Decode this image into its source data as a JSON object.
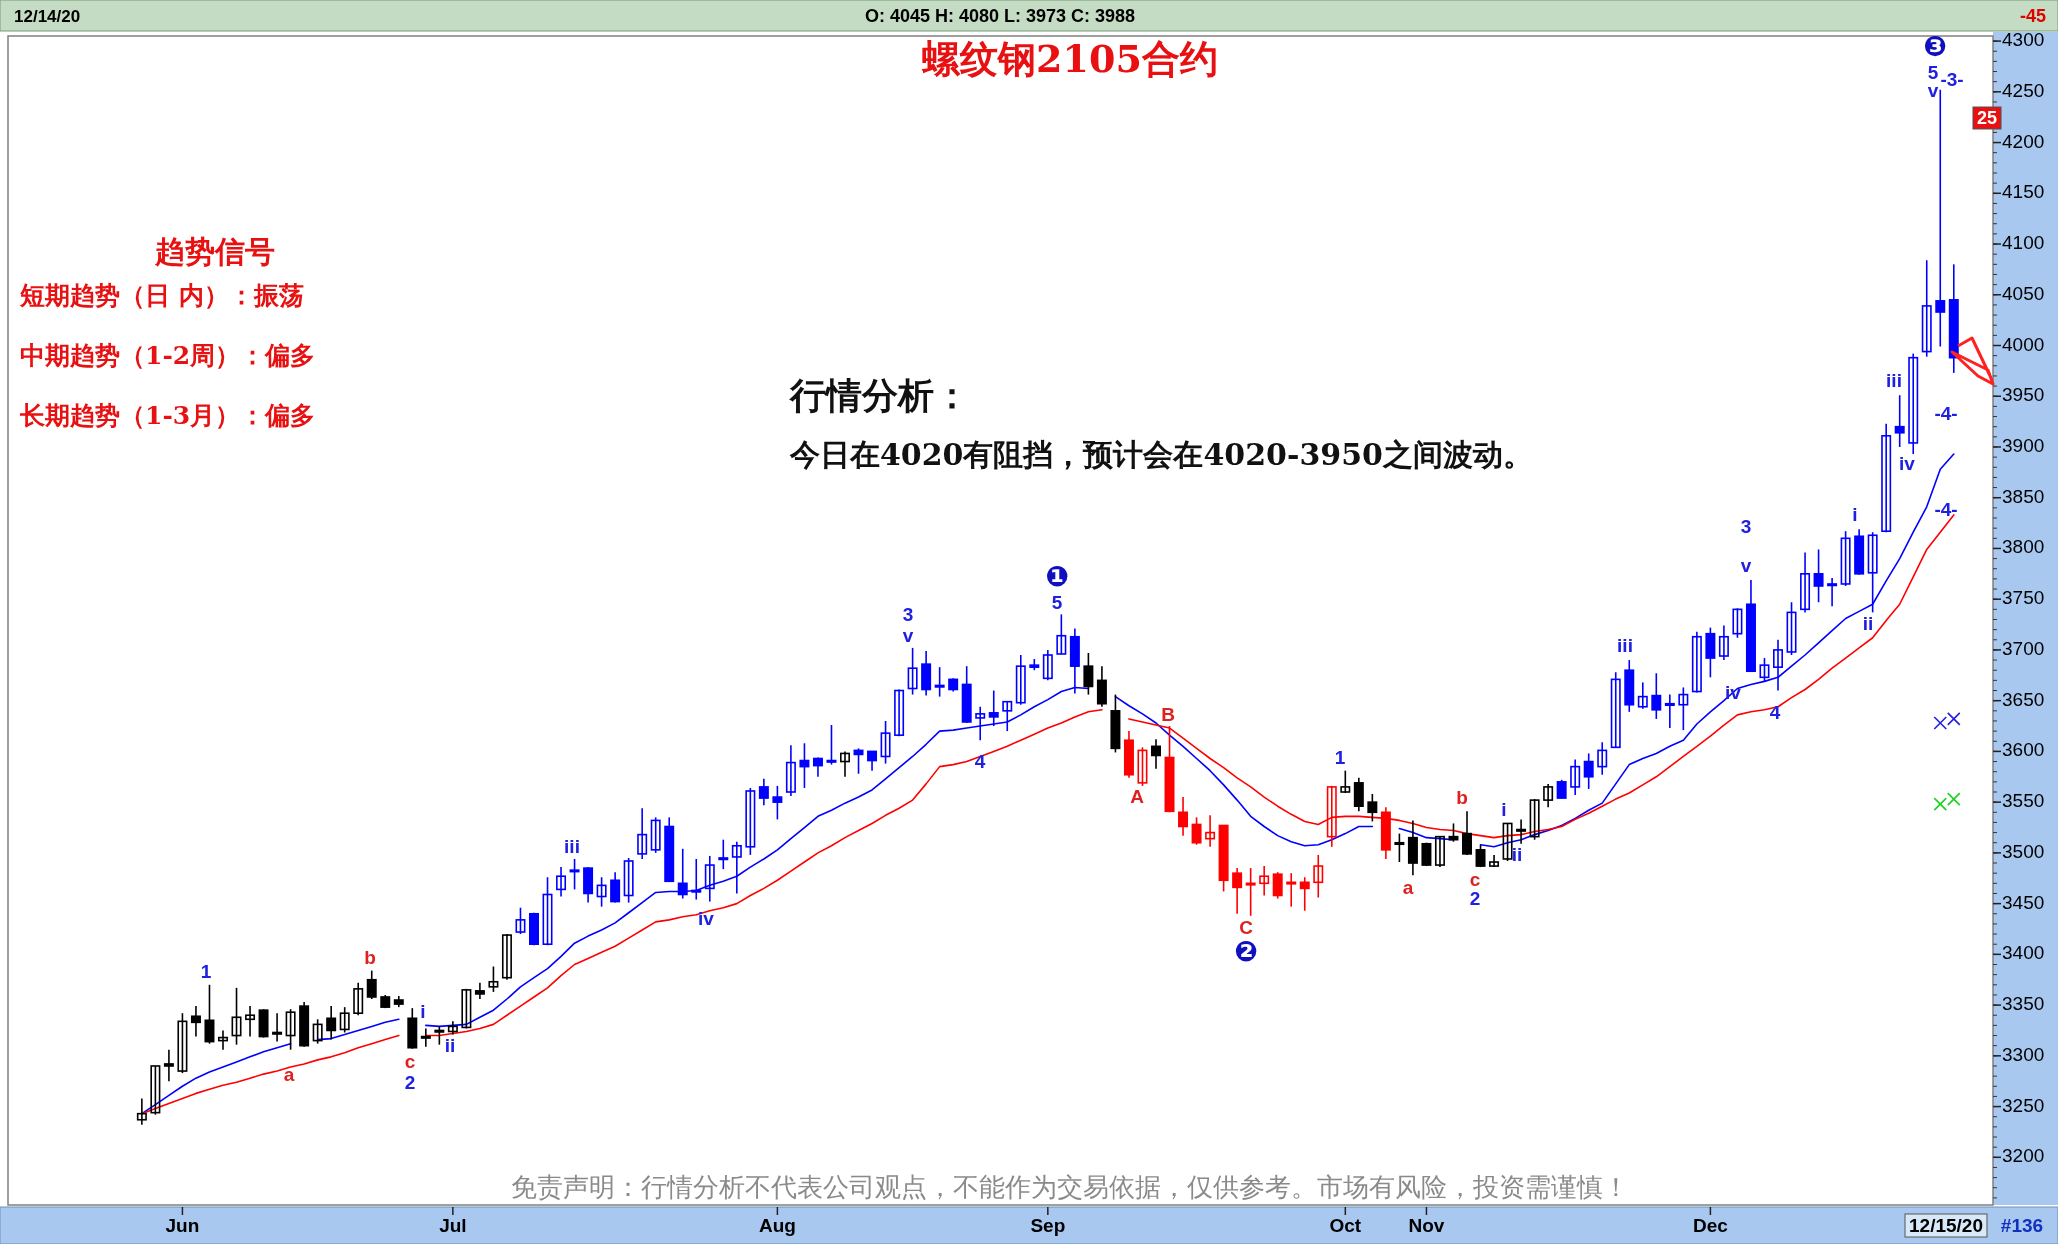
{
  "chart_data": {
    "type": "candlestick",
    "title": "螺纹钢2105合约",
    "categories": [
      null,
      null,
      null,
      "Jun",
      null,
      null,
      null,
      null,
      null,
      null,
      null,
      null,
      null,
      null,
      null,
      null,
      null,
      null,
      null,
      null,
      null,
      null,
      null,
      "Jul",
      null,
      null,
      null,
      null,
      null,
      null,
      null,
      null,
      null,
      null,
      null,
      null,
      null,
      null,
      null,
      null,
      null,
      null,
      null,
      null,
      null,
      null,
      null,
      "Aug",
      null,
      null,
      null,
      null,
      null,
      null,
      null,
      null,
      null,
      null,
      null,
      null,
      null,
      null,
      null,
      null,
      null,
      null,
      null,
      "Sep",
      null,
      null,
      null,
      null,
      null,
      null,
      null,
      null,
      null,
      null,
      null,
      null,
      null,
      null,
      null,
      null,
      null,
      null,
      null,
      null,
      null,
      "Oct",
      null,
      null,
      null,
      null,
      null,
      "Nov",
      null,
      null,
      null,
      null,
      null,
      null,
      null,
      null,
      null,
      null,
      null,
      null,
      null,
      null,
      null,
      null,
      null,
      null,
      null,
      null,
      "Dec",
      null,
      null,
      null,
      null,
      null,
      null,
      null,
      null,
      null,
      null,
      null,
      null,
      null,
      null,
      null,
      null,
      null,
      null
    ],
    "ohlc": [
      [
        3237,
        3258,
        3232,
        3243
      ],
      [
        3244,
        3290,
        3242,
        3290
      ],
      [
        3292,
        3306,
        3275,
        3290
      ],
      [
        3285,
        3342,
        3283,
        3334
      ],
      [
        3339,
        3349,
        3319,
        3333
      ],
      [
        3335,
        3370,
        3312,
        3314
      ],
      [
        3315,
        3325,
        3306,
        3318
      ],
      [
        3320,
        3367,
        3311,
        3338
      ],
      [
        3336,
        3349,
        3319,
        3340
      ],
      [
        3345,
        3346,
        3318,
        3319
      ],
      [
        3323,
        3342,
        3314,
        3322
      ],
      [
        3320,
        3346,
        3306,
        3343
      ],
      [
        3349,
        3353,
        3309,
        3310
      ],
      [
        3315,
        3336,
        3312,
        3331
      ],
      [
        3337,
        3349,
        3316,
        3325
      ],
      [
        3326,
        3348,
        3323,
        3342
      ],
      [
        3342,
        3372,
        3340,
        3366
      ],
      [
        3375,
        3384,
        3356,
        3358
      ],
      [
        3358,
        3360,
        3347,
        3348
      ],
      [
        3355,
        3359,
        3348,
        3351
      ],
      [
        3337,
        3347,
        3307,
        3308
      ],
      [
        3319,
        3327,
        3309,
        3318
      ],
      [
        3324,
        3329,
        3311,
        3325
      ],
      [
        3324,
        3334,
        3321,
        3329
      ],
      [
        3328,
        3366,
        3327,
        3365
      ],
      [
        3364,
        3372,
        3356,
        3361
      ],
      [
        3368,
        3388,
        3363,
        3373
      ],
      [
        3377,
        3420,
        3375,
        3419
      ],
      [
        3422,
        3446,
        3420,
        3434
      ],
      [
        3440,
        3441,
        3409,
        3410
      ],
      [
        3410,
        3476,
        3409,
        3459
      ],
      [
        3464,
        3486,
        3457,
        3477
      ],
      [
        3482,
        3494,
        3464,
        3483
      ],
      [
        3485,
        3486,
        3451,
        3460
      ],
      [
        3457,
        3476,
        3447,
        3468
      ],
      [
        3473,
        3481,
        3451,
        3452
      ],
      [
        3458,
        3495,
        3451,
        3492
      ],
      [
        3499,
        3544,
        3494,
        3518
      ],
      [
        3503,
        3535,
        3500,
        3532
      ],
      [
        3526,
        3535,
        3472,
        3472
      ],
      [
        3470,
        3504,
        3455,
        3459
      ],
      [
        3463,
        3494,
        3454,
        3463
      ],
      [
        3465,
        3497,
        3452,
        3488
      ],
      [
        3494,
        3513,
        3484,
        3495
      ],
      [
        3496,
        3511,
        3460,
        3507
      ],
      [
        3506,
        3564,
        3498,
        3561
      ],
      [
        3565,
        3573,
        3547,
        3554
      ],
      [
        3555,
        3566,
        3533,
        3550
      ],
      [
        3560,
        3606,
        3556,
        3589
      ],
      [
        3591,
        3608,
        3564,
        3585
      ],
      [
        3593,
        3594,
        3575,
        3586
      ],
      [
        3591,
        3626,
        3587,
        3590
      ],
      [
        3590,
        3600,
        3575,
        3598
      ],
      [
        3601,
        3603,
        3578,
        3597
      ],
      [
        3600,
        3600,
        3581,
        3591
      ],
      [
        3595,
        3630,
        3588,
        3618
      ],
      [
        3616,
        3661,
        3615,
        3660
      ],
      [
        3662,
        3702,
        3656,
        3682
      ],
      [
        3686,
        3699,
        3655,
        3661
      ],
      [
        3665,
        3683,
        3654,
        3664
      ],
      [
        3671,
        3672,
        3659,
        3661
      ],
      [
        3666,
        3684,
        3628,
        3629
      ],
      [
        3633,
        3644,
        3611,
        3637
      ],
      [
        3638,
        3660,
        3625,
        3634
      ],
      [
        3640,
        3649,
        3620,
        3649
      ],
      [
        3648,
        3695,
        3646,
        3684
      ],
      [
        3685,
        3691,
        3680,
        3683
      ],
      [
        3672,
        3700,
        3670,
        3695
      ],
      [
        3696,
        3735,
        3696,
        3714
      ],
      [
        3713,
        3721,
        3657,
        3684
      ],
      [
        3684,
        3697,
        3656,
        3664
      ],
      [
        3670,
        3684,
        3644,
        3647
      ],
      [
        3640,
        3656,
        3599,
        3603
      ],
      [
        3611,
        3620,
        3574,
        3577
      ],
      [
        3569,
        3604,
        3566,
        3601
      ],
      [
        3605,
        3612,
        3583,
        3596
      ],
      [
        3594,
        3625,
        3540,
        3541
      ],
      [
        3540,
        3555,
        3517,
        3526
      ],
      [
        3528,
        3535,
        3508,
        3510
      ],
      [
        3514,
        3537,
        3506,
        3520
      ],
      [
        3527,
        3527,
        3462,
        3473
      ],
      [
        3480,
        3485,
        3440,
        3466
      ],
      [
        3470,
        3485,
        3438,
        3470
      ],
      [
        3470,
        3487,
        3458,
        3477
      ],
      [
        3479,
        3481,
        3455,
        3458
      ],
      [
        3471,
        3480,
        3447,
        3471
      ],
      [
        3471,
        3476,
        3443,
        3465
      ],
      [
        3471,
        3498,
        3456,
        3487
      ],
      [
        3516,
        3566,
        3506,
        3565
      ],
      [
        3560,
        3581,
        3559,
        3565
      ],
      [
        3569,
        3574,
        3541,
        3546
      ],
      [
        3550,
        3558,
        3531,
        3540
      ],
      [
        3540,
        3545,
        3494,
        3503
      ],
      [
        3510,
        3519,
        3491,
        3510
      ],
      [
        3515,
        3532,
        3478,
        3490
      ],
      [
        3509,
        3510,
        3487,
        3488
      ],
      [
        3488,
        3516,
        3486,
        3516
      ],
      [
        3516,
        3529,
        3511,
        3513
      ],
      [
        3519,
        3541,
        3498,
        3499
      ],
      [
        3503,
        3508,
        3486,
        3487
      ],
      [
        3487,
        3498,
        3486,
        3491
      ],
      [
        3494,
        3529,
        3492,
        3529
      ],
      [
        3522,
        3533,
        3509,
        3523
      ],
      [
        3516,
        3553,
        3513,
        3552
      ],
      [
        3552,
        3568,
        3545,
        3565
      ],
      [
        3570,
        3572,
        3554,
        3554
      ],
      [
        3565,
        3592,
        3557,
        3585
      ],
      [
        3590,
        3598,
        3563,
        3575
      ],
      [
        3585,
        3609,
        3577,
        3601
      ],
      [
        3604,
        3678,
        3604,
        3671
      ],
      [
        3680,
        3690,
        3639,
        3646
      ],
      [
        3644,
        3668,
        3642,
        3654
      ],
      [
        3655,
        3677,
        3632,
        3641
      ],
      [
        3647,
        3656,
        3623,
        3647
      ],
      [
        3646,
        3663,
        3621,
        3656
      ],
      [
        3659,
        3718,
        3658,
        3713
      ],
      [
        3716,
        3722,
        3673,
        3692
      ],
      [
        3694,
        3724,
        3690,
        3713
      ],
      [
        3716,
        3741,
        3712,
        3740
      ],
      [
        3745,
        3769,
        3679,
        3679
      ],
      [
        3673,
        3692,
        3669,
        3685
      ],
      [
        3683,
        3710,
        3660,
        3700
      ],
      [
        3698,
        3747,
        3695,
        3737
      ],
      [
        3740,
        3796,
        3737,
        3775
      ],
      [
        3775,
        3799,
        3747,
        3763
      ],
      [
        3765,
        3771,
        3743,
        3765
      ],
      [
        3765,
        3817,
        3763,
        3810
      ],
      [
        3812,
        3819,
        3774,
        3775
      ],
      [
        3776,
        3816,
        3737,
        3813
      ],
      [
        3817,
        3923,
        3816,
        3911
      ],
      [
        3920,
        3951,
        3900,
        3914
      ],
      [
        3904,
        3992,
        3893,
        3988
      ],
      [
        3994,
        4084,
        3989,
        4039
      ],
      [
        4044,
        4252,
        3999,
        4033
      ],
      [
        4045,
        4080,
        3973,
        3988
      ]
    ],
    "colors": [
      "#000000",
      "#000000",
      "#000000",
      "#000000",
      "#000000",
      "#000000",
      "#000000",
      "#000000",
      "#000000",
      "#000000",
      "#000000",
      "#000000",
      "#000000",
      "#000000",
      "#000000",
      "#000000",
      "#000000",
      "#000000",
      "#000000",
      "#000000",
      "#000000",
      "#000000",
      "#000000",
      "#000000",
      "#000000",
      "#000000",
      "#000000",
      "#000000",
      "#0000ff",
      "#0000ff",
      "#0000ff",
      "#0000ff",
      "#0000ff",
      "#0000ff",
      "#0000ff",
      "#0000ff",
      "#0000ff",
      "#0000ff",
      "#0000ff",
      "#0000ff",
      "#0000ff",
      "#0000ff",
      "#0000ff",
      "#0000ff",
      "#0000ff",
      "#0000ff",
      "#0000ff",
      "#0000ff",
      "#0000ff",
      "#0000ff",
      "#0000ff",
      "#0000ff",
      "#000000",
      "#0000ff",
      "#0000ff",
      "#0000ff",
      "#0000ff",
      "#0000ff",
      "#0000ff",
      "#0000ff",
      "#0000ff",
      "#0000ff",
      "#0000ff",
      "#0000ff",
      "#0000ff",
      "#0000ff",
      "#0000ff",
      "#0000ff",
      "#0000ff",
      "#0000ff",
      "#000000",
      "#000000",
      "#000000",
      "#ff0000",
      "#ff0000",
      "#000000",
      "#ff0000",
      "#ff0000",
      "#ff0000",
      "#ff0000",
      "#ff0000",
      "#ff0000",
      "#ff0000",
      "#ff0000",
      "#ff0000",
      "#ff0000",
      "#ff0000",
      "#ff0000",
      "#ff0000",
      "#000000",
      "#000000",
      "#000000",
      "#ff0000",
      "#000000",
      "#000000",
      "#000000",
      "#000000",
      "#000000",
      "#000000",
      "#000000",
      "#000000",
      "#000000",
      "#000000",
      "#000000",
      "#000000",
      "#0000ff",
      "#0000ff",
      "#0000ff",
      "#0000ff",
      "#0000ff",
      "#0000ff",
      "#0000ff",
      "#0000ff",
      "#0000ff",
      "#0000ff",
      "#0000ff",
      "#0000ff",
      "#0000ff",
      "#0000ff",
      "#0000ff",
      "#0000ff",
      "#0000ff",
      "#0000ff",
      "#0000ff",
      "#0000ff",
      "#0000ff",
      "#0000ff",
      "#0000ff",
      "#0000ff",
      "#0000ff",
      "#0000ff",
      "#0000ff",
      "#0000ff",
      "#0000ff",
      "#0000ff"
    ],
    "series": [
      {
        "type": "line",
        "color": "#0000ff",
        "values": [
          3243,
          3252,
          3261,
          3270,
          3278,
          3284,
          3289,
          3294,
          3299,
          3304,
          3308,
          3312,
          null,
          3316,
          3317,
          3321,
          3325,
          3329,
          3333,
          3336,
          null,
          3330,
          3329,
          3330,
          3331,
          3338,
          3345,
          3356,
          3368,
          3377,
          3386,
          3398,
          3411,
          3418,
          3424,
          3431,
          3441,
          3451,
          3461,
          3462,
          3462,
          3463,
          3468,
          3472,
          3477,
          3486,
          3494,
          3503,
          3514,
          3525,
          3536,
          3542,
          3549,
          3555,
          3562,
          3573,
          3584,
          3595,
          3607,
          3620,
          3621,
          3623,
          3625,
          3627,
          3629,
          3636,
          3644,
          3651,
          3659,
          3663,
          3662,
          null,
          3654,
          3645,
          3637,
          3628,
          3616,
          3605,
          3593,
          3581,
          3567,
          3552,
          3536,
          3526,
          3517,
          3511,
          3507,
          3508,
          3513,
          3519,
          3526,
          3526,
          null,
          3524,
          3520,
          3515,
          3514,
          3513,
          null,
          3508,
          3506,
          3510,
          3513,
          3518,
          3522,
          3527,
          3534,
          3542,
          3549,
          3568,
          3587,
          3593,
          3598,
          3605,
          3611,
          3627,
          3639,
          3650,
          3662,
          3666,
          3669,
          3673,
          3684,
          3695,
          3707,
          3719,
          3731,
          3738,
          3745,
          3768,
          3790,
          3816,
          3841,
          3878,
          3893
        ]
      },
      {
        "type": "line",
        "color": "#ff0000",
        "values": [
          3243,
          3248,
          3253,
          3258,
          3263,
          3267,
          3271,
          3274,
          3278,
          3282,
          3285,
          3289,
          3292,
          3296,
          3299,
          3303,
          3308,
          3312,
          3316,
          3320,
          null,
          3320,
          3320,
          3322,
          3324,
          3327,
          3331,
          3340,
          3349,
          3358,
          3367,
          3379,
          3390,
          3396,
          3402,
          3408,
          3416,
          3424,
          3432,
          3434,
          3437,
          3439,
          3443,
          3446,
          3450,
          3458,
          3465,
          3473,
          3482,
          3491,
          3500,
          3507,
          3515,
          3522,
          3529,
          3537,
          3544,
          3552,
          3568,
          3585,
          3587,
          3590,
          3595,
          3600,
          3605,
          3611,
          3617,
          3623,
          3628,
          3634,
          3639,
          3641,
          null,
          3632,
          3629,
          3626,
          3623,
          3613,
          3603,
          3593,
          3584,
          3574,
          3565,
          3555,
          3546,
          3538,
          3531,
          3528,
          3535,
          3536,
          3536,
          3535,
          3534,
          3532,
          3529,
          3525,
          3523,
          3522,
          3519,
          3517,
          3515,
          3517,
          3518,
          3521,
          3523,
          3526,
          3533,
          3539,
          3546,
          3553,
          3559,
          3567,
          3575,
          3585,
          3595,
          3605,
          3615,
          3626,
          3636,
          3639,
          3641,
          3644,
          3653,
          3661,
          3671,
          3682,
          3692,
          3702,
          3712,
          3729,
          3745,
          3772,
          3799,
          3816,
          3833
        ]
      },
      {
        "type": "scatter",
        "marker": "cross",
        "color": "#2020e0",
        "values": [
          null,
          null,
          null,
          null,
          null,
          null,
          null,
          null,
          null,
          null,
          null,
          null,
          null,
          null,
          null,
          null,
          null,
          null,
          null,
          null,
          null,
          null,
          null,
          null,
          null,
          null,
          null,
          null,
          null,
          null,
          null,
          null,
          null,
          null,
          null,
          null,
          null,
          null,
          null,
          null,
          null,
          null,
          null,
          null,
          null,
          null,
          null,
          null,
          null,
          null,
          null,
          null,
          null,
          null,
          null,
          null,
          null,
          null,
          null,
          null,
          null,
          null,
          null,
          null,
          null,
          null,
          null,
          null,
          null,
          null,
          null,
          null,
          null,
          null,
          null,
          null,
          null,
          null,
          null,
          null,
          null,
          null,
          null,
          null,
          null,
          null,
          null,
          null,
          null,
          null,
          null,
          null,
          null,
          null,
          null,
          null,
          null,
          null,
          null,
          null,
          null,
          null,
          null,
          null,
          null,
          null,
          null,
          null,
          null,
          null,
          null,
          null,
          null,
          null,
          null,
          null,
          null,
          null,
          null,
          null,
          null,
          null,
          null,
          null,
          null,
          null,
          null,
          null,
          null,
          null,
          null,
          null,
          null,
          3628,
          3632
        ]
      },
      {
        "type": "scatter",
        "marker": "cross",
        "color": "#20d020",
        "values": [
          null,
          null,
          null,
          null,
          null,
          null,
          null,
          null,
          null,
          null,
          null,
          null,
          null,
          null,
          null,
          null,
          null,
          null,
          null,
          null,
          null,
          null,
          null,
          null,
          null,
          null,
          null,
          null,
          null,
          null,
          null,
          null,
          null,
          null,
          null,
          null,
          null,
          null,
          null,
          null,
          null,
          null,
          null,
          null,
          null,
          null,
          null,
          null,
          null,
          null,
          null,
          null,
          null,
          null,
          null,
          null,
          null,
          null,
          null,
          null,
          null,
          null,
          null,
          null,
          null,
          null,
          null,
          null,
          null,
          null,
          null,
          null,
          null,
          null,
          null,
          null,
          null,
          null,
          null,
          null,
          null,
          null,
          null,
          null,
          null,
          null,
          null,
          null,
          null,
          null,
          null,
          null,
          null,
          null,
          null,
          null,
          null,
          null,
          null,
          null,
          null,
          null,
          null,
          null,
          null,
          null,
          null,
          null,
          null,
          null,
          null,
          null,
          null,
          null,
          null,
          null,
          null,
          null,
          null,
          null,
          null,
          null,
          null,
          null,
          null,
          null,
          null,
          null,
          null,
          null,
          null,
          null,
          null,
          3548,
          3553
        ]
      }
    ],
    "ylim": [
      3153,
      4305
    ],
    "yticks": [
      3200,
      3250,
      3300,
      3350,
      3400,
      3450,
      3500,
      3550,
      3600,
      3650,
      3700,
      3750,
      3800,
      3850,
      3900,
      3950,
      4000,
      4050,
      4100,
      4150,
      4200,
      4250,
      4300
    ],
    "annotations": [
      "12/14/20",
      "O: 4045   H: 4080   L: 3973   C: 3988",
      "-45",
      "25",
      "12/15/20",
      "#136",
      "趋势信号",
      "短期趋势（日 内）：振荡",
      "中期趋势（1-2周）：偏多",
      "长期趋势（1-3月）：偏多",
      "行情分析：",
      "今日在4020有阻挡，预计会在4020-3950之间波动。",
      "免责声明：行情分析不代表公司观点，不能作为交易依据，仅供参考。市场有风险，投资需谨慎！",
      "1",
      "a",
      "b",
      "c",
      "2",
      "i",
      "ii",
      "iii",
      "iv",
      "3",
      "v",
      "4",
      "❶",
      "5",
      "A",
      "B",
      "C",
      "❷",
      "1",
      "a",
      "b",
      "c",
      "2",
      "i",
      "ii",
      "iii",
      "3",
      "v",
      "iv",
      "4",
      "i",
      "ii",
      "iii",
      "iv",
      "❸",
      "5",
      "v",
      "-3-",
      "-4-",
      "-4-"
    ]
  }
}
